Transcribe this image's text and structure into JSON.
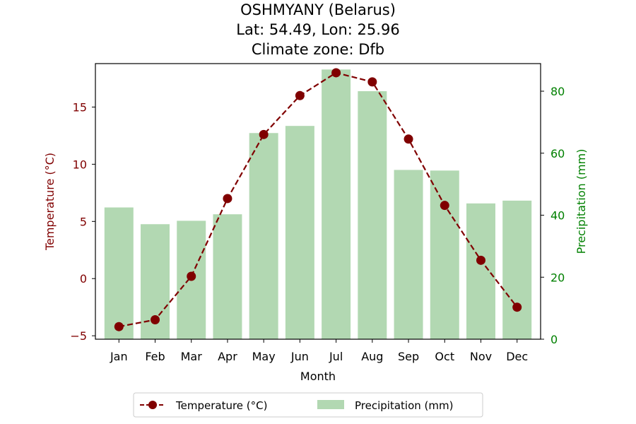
{
  "chart_data": {
    "type": "bar+line",
    "title_lines": [
      "OSHMYANY (Belarus)",
      "Lat: 54.49, Lon: 25.96",
      "Climate zone: Dfb"
    ],
    "xlabel": "Month",
    "y_left_label": "Temperature (°C)",
    "y_right_label": "Precipitation (mm)",
    "categories": [
      "Jan",
      "Feb",
      "Mar",
      "Apr",
      "May",
      "Jun",
      "Jul",
      "Aug",
      "Sep",
      "Oct",
      "Nov",
      "Dec"
    ],
    "series": [
      {
        "name": "Temperature (°C)",
        "kind": "line",
        "axis": "left",
        "color": "#800000",
        "values": [
          -4.2,
          -3.6,
          0.2,
          7.0,
          12.6,
          16.0,
          18.0,
          17.2,
          12.2,
          6.4,
          1.6,
          -2.5
        ]
      },
      {
        "name": "Precipitation (mm)",
        "kind": "bar",
        "axis": "right",
        "color": "#b2d8b2",
        "values": [
          42.5,
          37.1,
          38.2,
          40.3,
          66.5,
          68.8,
          87.0,
          80.0,
          54.6,
          54.4,
          43.8,
          44.7
        ]
      }
    ],
    "y_left": {
      "ylim": [
        -5.3,
        18.8
      ],
      "ticks": [
        -5,
        0,
        5,
        10,
        15
      ],
      "tick_labels": [
        "−5",
        "0",
        "5",
        "10",
        "15"
      ],
      "color": "#800000"
    },
    "y_right": {
      "ylim": [
        0,
        88.9
      ],
      "ticks": [
        0,
        20,
        40,
        60,
        80
      ],
      "tick_labels": [
        "0",
        "20",
        "40",
        "60",
        "80"
      ],
      "color": "#008000"
    },
    "grid": false,
    "legend": {
      "placement": "bottom-center",
      "entries": [
        "Temperature (°C)",
        "Precipitation (mm)"
      ]
    }
  }
}
